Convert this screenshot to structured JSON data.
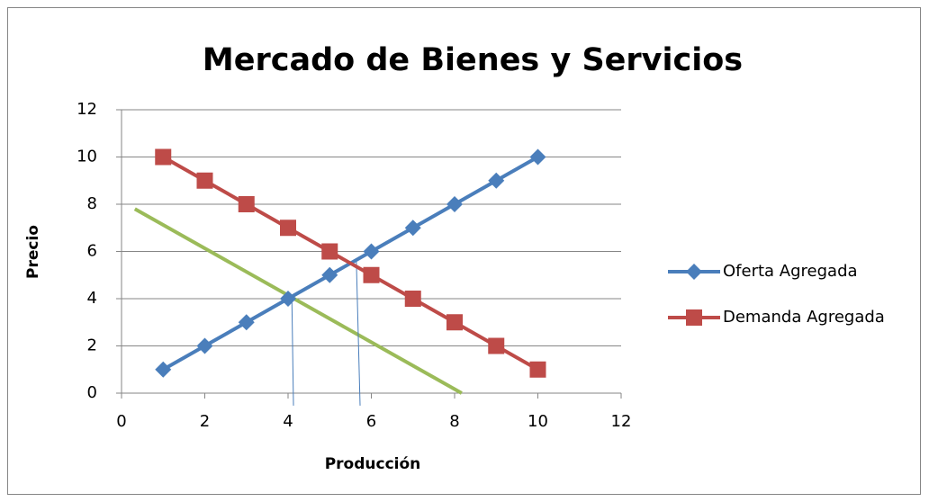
{
  "chart_data": {
    "type": "line",
    "title": "Mercado de Bienes y Servicios",
    "x_label": "Producción",
    "y_label": "Precio",
    "xlim": [
      0,
      12
    ],
    "xticks": [
      0,
      2,
      4,
      6,
      8,
      10,
      12
    ],
    "ylim": [
      0,
      12
    ],
    "yticks": [
      0,
      2,
      4,
      6,
      8,
      10,
      12
    ],
    "grid": true,
    "legend": "right",
    "series": [
      {
        "name": "Oferta Agregada",
        "color": "#4a7ebb",
        "marker": "diamond",
        "x": [
          1,
          2,
          3,
          4,
          5,
          6,
          7,
          8,
          9,
          10
        ],
        "values": [
          1,
          2,
          3,
          4,
          5,
          6,
          7,
          8,
          9,
          10
        ]
      },
      {
        "name": "Demanda Agregada",
        "color": "#be4b48",
        "marker": "square",
        "x": [
          1,
          2,
          3,
          4,
          5,
          6,
          7,
          8,
          9,
          10
        ],
        "values": [
          10,
          9,
          8,
          7,
          6,
          5,
          4,
          3,
          2,
          1
        ]
      }
    ],
    "extra_lines": [
      {
        "color": "#9bbb59",
        "width": 4,
        "x": [
          0.32,
          8.17
        ],
        "values": [
          7.8,
          0
        ]
      },
      {
        "color": "#4a7ebb",
        "width": 1,
        "x": [
          4.09,
          4.13
        ],
        "values": [
          4.15,
          -0.53
        ]
      },
      {
        "color": "#4a7ebb",
        "width": 1,
        "x": [
          5.64,
          5.73
        ],
        "values": [
          5.6,
          -0.53
        ]
      }
    ]
  }
}
